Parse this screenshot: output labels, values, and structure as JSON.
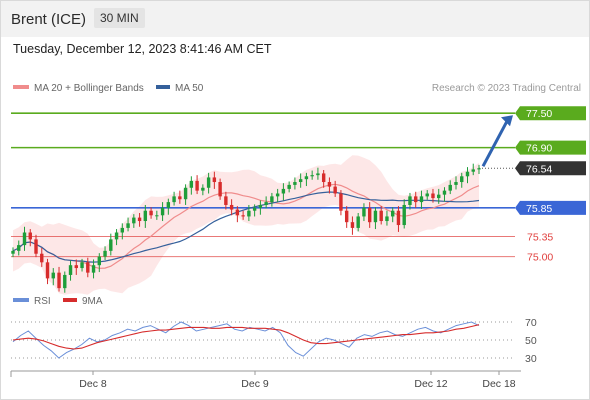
{
  "header": {
    "instrument": "Brent (ICE)",
    "timeframe": "30 MIN",
    "datetime": "Tuesday, December 12, 2023 8:41:46 AM CET"
  },
  "legend": {
    "ma20_label": "MA 20 + Bollinger Bands",
    "ma50_label": "MA 50",
    "copyright": "Research © 2023 Trading Central",
    "rsi_label": "RSI",
    "rsi_ma_label": "9MA"
  },
  "colors": {
    "ma20": "#f08c8c",
    "ma50": "#35609b",
    "bands_fill": "#fde3e3",
    "bull_candle": "#1e9e3a",
    "bear_candle": "#d72c2c",
    "resistance": "#5aab1e",
    "pivot": "#3a66d6",
    "support": "#e0403e",
    "last_price_bg": "#333333",
    "rsi_line": "#6a8fd8",
    "rsi_ma": "#d62c2c",
    "arrow": "#2f63b0"
  },
  "chart_data": [
    {
      "type": "candlestick",
      "title": "Brent (ICE)",
      "timeframe": "30 MIN",
      "x_tick_labels": [
        "Dec 8",
        "Dec 9",
        "Dec 12",
        "Dec 18"
      ],
      "price_range": [
        74.4,
        77.8
      ],
      "last_price": 76.54,
      "levels": [
        {
          "value": 77.5,
          "label": "77.50",
          "kind": "resistance"
        },
        {
          "value": 76.9,
          "label": "76.90",
          "kind": "resistance"
        },
        {
          "value": 75.85,
          "label": "75.85",
          "kind": "pivot"
        },
        {
          "value": 75.35,
          "label": "75.35",
          "kind": "support"
        },
        {
          "value": 75.0,
          "label": "75.00",
          "kind": "support"
        }
      ],
      "scenario_arrow": {
        "from": 76.54,
        "to": 77.5,
        "direction": "up"
      },
      "price_path": [
        75.1,
        75.2,
        75.42,
        75.3,
        75.05,
        74.9,
        74.62,
        74.72,
        74.45,
        74.68,
        74.85,
        74.8,
        74.9,
        74.72,
        74.85,
        75.0,
        75.1,
        75.3,
        75.42,
        75.5,
        75.58,
        75.68,
        75.62,
        75.8,
        75.72,
        75.72,
        75.85,
        75.95,
        76.05,
        76.0,
        76.2,
        76.32,
        76.15,
        76.2,
        76.38,
        76.3,
        76.05,
        75.9,
        75.82,
        75.72,
        75.7,
        75.8,
        75.85,
        75.9,
        75.95,
        76.05,
        76.1,
        76.18,
        76.25,
        76.3,
        76.35,
        76.4,
        76.42,
        76.45,
        76.3,
        76.22,
        76.1,
        75.8,
        75.6,
        75.5,
        75.7,
        75.85,
        75.6,
        75.8,
        75.62,
        75.7,
        75.8,
        75.55,
        75.9,
        76.05,
        75.95,
        76.05,
        76.1,
        76.02,
        76.08,
        76.15,
        76.25,
        76.3,
        76.4,
        76.48,
        76.52,
        76.54
      ]
    },
    {
      "type": "line",
      "title": "RSI",
      "series": [
        {
          "name": "RSI",
          "values": [
            48,
            55,
            60,
            52,
            44,
            38,
            30,
            36,
            40,
            45,
            52,
            48,
            50,
            55,
            58,
            62,
            60,
            64,
            66,
            62,
            58,
            65,
            70,
            66,
            60,
            62,
            64,
            66,
            68,
            62,
            60,
            64,
            62,
            60,
            64,
            58,
            44,
            36,
            32,
            40,
            48,
            52,
            50,
            46,
            42,
            52,
            56,
            54,
            58,
            60,
            56,
            54,
            58,
            62,
            64,
            60,
            58,
            62,
            66,
            68,
            70,
            66
          ]
        },
        {
          "name": "9MA",
          "values": [
            50,
            51,
            52,
            51,
            49,
            46,
            43,
            41,
            40,
            41,
            44,
            47,
            49,
            51,
            53,
            55,
            57,
            59,
            60,
            61,
            61,
            62,
            63,
            64,
            64,
            64,
            63,
            63,
            64,
            64,
            64,
            63,
            63,
            63,
            62,
            61,
            58,
            54,
            50,
            47,
            46,
            46,
            47,
            48,
            49,
            50,
            51,
            52,
            53,
            54,
            55,
            56,
            56,
            57,
            58,
            58,
            59,
            60,
            62,
            63,
            65,
            67
          ]
        }
      ],
      "ylim": [
        20,
        80
      ],
      "y_ticks": [
        70,
        50,
        30
      ]
    }
  ]
}
